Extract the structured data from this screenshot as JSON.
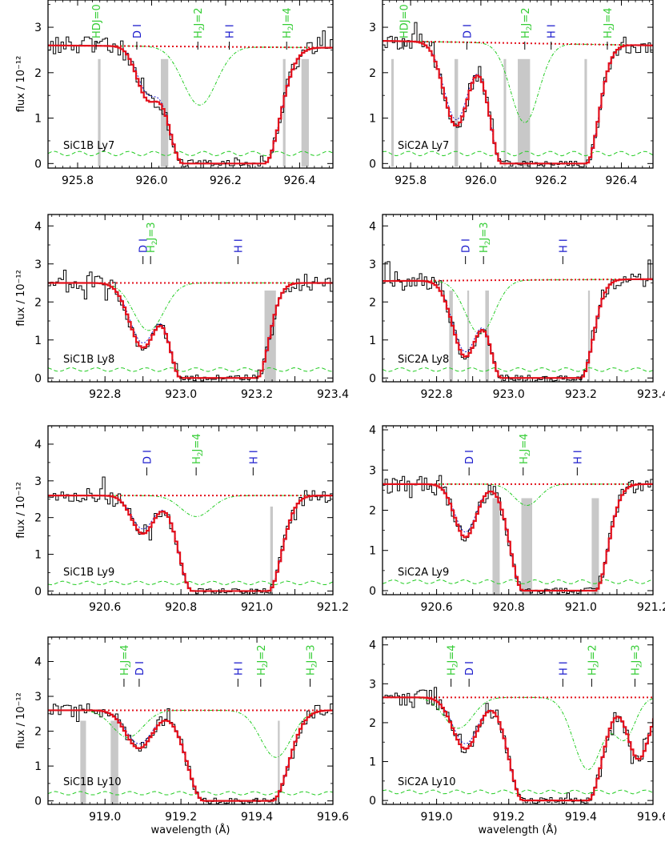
{
  "colors": {
    "axis": "#000000",
    "data": "#000000",
    "model": "#e3101b",
    "continuum": "#e3101b",
    "h2": "#22cc22",
    "nolambda": "#2222cc",
    "band": "#c8c8c8",
    "label_dh": "#1a1acc",
    "label_h2": "#33cc33"
  },
  "chart_data": [
    {
      "type": "line",
      "panel": "SiC1B Ly7",
      "xlim": [
        925.72,
        926.49
      ],
      "ylim": [
        -0.1,
        3.6
      ],
      "xticks": [
        "925.8",
        "926.0",
        "926.2",
        "926.4"
      ],
      "yticks": [
        "0",
        "1",
        "2",
        "3"
      ],
      "ylabel": "flux / 10⁻¹²",
      "xlabel": "",
      "continuum": 2.6,
      "cont_end": 2.55,
      "troughs": [
        {
          "c": 925.99,
          "w": 0.03,
          "d": 0.42
        },
        {
          "c": 926.195,
          "w": 0.12,
          "d": 1.0,
          "flat": 0.11
        }
      ],
      "h2": [
        {
          "c": 926.13,
          "w": 0.045,
          "d": 0.5
        }
      ],
      "bands": [
        [
          925.855,
          925.862
        ],
        [
          926.025,
          926.045
        ],
        [
          926.355,
          926.362
        ],
        [
          926.405,
          926.425
        ]
      ],
      "labels": [
        {
          "text": "HDJ=0",
          "x": 925.85,
          "color": "h2"
        },
        {
          "text": "D I",
          "x": 925.96,
          "color": "dh"
        },
        {
          "text": "H2J=2",
          "x": 926.125,
          "color": "h2"
        },
        {
          "text": "H I",
          "x": 926.21,
          "color": "dh"
        },
        {
          "text": "H2J=4",
          "x": 926.365,
          "color": "h2"
        }
      ]
    },
    {
      "type": "line",
      "panel": "SiC2A Ly7",
      "xlim": [
        925.72,
        926.49
      ],
      "ylim": [
        -0.1,
        3.6
      ],
      "xticks": [
        "925.8",
        "926.0",
        "926.2",
        "926.4"
      ],
      "yticks": [
        "0",
        "1",
        "2",
        "3"
      ],
      "ylabel": "",
      "xlabel": "",
      "continuum": 2.7,
      "cont_end": 2.6,
      "troughs": [
        {
          "c": 925.93,
          "w": 0.035,
          "d": 0.69
        },
        {
          "c": 926.18,
          "w": 0.1,
          "d": 1.0,
          "flat": 0.12
        }
      ],
      "h2": [
        {
          "c": 926.125,
          "w": 0.04,
          "d": 0.66
        }
      ],
      "bands": [
        [
          925.745,
          925.752
        ],
        [
          925.925,
          925.935
        ],
        [
          926.065,
          926.072
        ],
        [
          926.105,
          926.14
        ],
        [
          926.295,
          926.302
        ]
      ],
      "labels": [
        {
          "text": "HDJ=0",
          "x": 925.78,
          "color": "h2"
        },
        {
          "text": "D I",
          "x": 925.96,
          "color": "dh"
        },
        {
          "text": "H2J=2",
          "x": 926.125,
          "color": "h2"
        },
        {
          "text": "H I",
          "x": 926.2,
          "color": "dh"
        },
        {
          "text": "H2J=4",
          "x": 926.36,
          "color": "h2"
        }
      ]
    },
    {
      "type": "line",
      "panel": "SiC1B Ly8",
      "xlim": [
        922.65,
        923.4
      ],
      "ylim": [
        -0.1,
        4.3
      ],
      "xticks": [
        "922.8",
        "922.9",
        "923.0",
        "923.1",
        "923.2",
        "923.3",
        "923.4"
      ],
      "yticks": [
        "0",
        "1",
        "2",
        "3",
        "4"
      ],
      "ylabel": "flux / 10⁻¹²",
      "xlabel": "",
      "continuum": 2.5,
      "cont_end": 2.5,
      "troughs": [
        {
          "c": 922.9,
          "w": 0.035,
          "d": 0.68
        },
        {
          "c": 923.1,
          "w": 0.09,
          "d": 1.0,
          "flat": 0.1
        }
      ],
      "h2": [
        {
          "c": 922.915,
          "w": 0.04,
          "d": 0.5
        }
      ],
      "bands": [
        [
          923.22,
          923.25
        ]
      ],
      "labels": [
        {
          "text": "D I",
          "x": 922.9,
          "color": "dh"
        },
        {
          "text": "H2J=3",
          "x": 922.92,
          "color": "h2"
        },
        {
          "text": "H I",
          "x": 923.15,
          "color": "dh"
        }
      ]
    },
    {
      "type": "line",
      "panel": "SiC2A Ly8",
      "xlim": [
        922.65,
        923.4
      ],
      "ylim": [
        -0.1,
        4.3
      ],
      "xticks": [
        "922.8",
        "922.9",
        "923.0",
        "923.1",
        "923.2",
        "923.3",
        "923.4"
      ],
      "yticks": [
        "0",
        "1",
        "2",
        "3",
        "4"
      ],
      "ylabel": "",
      "xlabel": "",
      "continuum": 2.55,
      "cont_end": 2.6,
      "troughs": [
        {
          "c": 922.88,
          "w": 0.035,
          "d": 0.78
        },
        {
          "c": 923.09,
          "w": 0.095,
          "d": 1.0,
          "flat": 0.11
        }
      ],
      "h2": [
        {
          "c": 922.92,
          "w": 0.04,
          "d": 0.55
        }
      ],
      "bands": [
        [
          922.835,
          922.845
        ],
        [
          922.885,
          922.89
        ],
        [
          922.935,
          922.945
        ],
        [
          923.22,
          923.225
        ]
      ],
      "labels": [
        {
          "text": "D I",
          "x": 922.88,
          "color": "dh"
        },
        {
          "text": "H2J=3",
          "x": 922.93,
          "color": "h2"
        },
        {
          "text": "H I",
          "x": 923.15,
          "color": "dh"
        }
      ]
    },
    {
      "type": "line",
      "panel": "SiC1B Ly9",
      "xlim": [
        920.45,
        921.2
      ],
      "ylim": [
        -0.1,
        4.5
      ],
      "xticks": [
        "920.6",
        "920.7",
        "920.8",
        "920.9",
        "921.0",
        "921.1",
        "921.2"
      ],
      "yticks": [
        "0",
        "1",
        "2",
        "3",
        "4"
      ],
      "ylabel": "flux / 10⁻¹²",
      "xlabel": "",
      "continuum": 2.6,
      "cont_end": 2.6,
      "troughs": [
        {
          "c": 920.7,
          "w": 0.03,
          "d": 0.4
        },
        {
          "c": 920.93,
          "w": 0.1,
          "d": 1.0,
          "flat": 0.1
        }
      ],
      "h2": [
        {
          "c": 920.84,
          "w": 0.04,
          "d": 0.22
        }
      ],
      "bands": [
        [
          921.035,
          921.042
        ]
      ],
      "labels": [
        {
          "text": "D I",
          "x": 920.71,
          "color": "dh"
        },
        {
          "text": "H2J=4",
          "x": 920.84,
          "color": "h2"
        },
        {
          "text": "H I",
          "x": 920.99,
          "color": "dh"
        }
      ]
    },
    {
      "type": "line",
      "panel": "SiC2A Ly9",
      "xlim": [
        920.45,
        921.2
      ],
      "ylim": [
        -0.1,
        4.1
      ],
      "xticks": [
        "920.6",
        "920.7",
        "920.8",
        "920.9",
        "921.0",
        "921.1",
        "921.2"
      ],
      "yticks": [
        "0",
        "1",
        "2",
        "3",
        "4"
      ],
      "ylabel": "",
      "xlabel": "",
      "continuum": 2.65,
      "cont_end": 2.65,
      "troughs": [
        {
          "c": 920.68,
          "w": 0.03,
          "d": 0.5
        },
        {
          "c": 920.94,
          "w": 0.1,
          "d": 1.0,
          "flat": 0.1
        }
      ],
      "h2": [
        {
          "c": 920.85,
          "w": 0.035,
          "d": 0.2
        }
      ],
      "bands": [
        [
          920.755,
          920.775
        ],
        [
          920.835,
          920.865
        ],
        [
          921.03,
          921.05
        ]
      ],
      "labels": [
        {
          "text": "D I",
          "x": 920.69,
          "color": "dh"
        },
        {
          "text": "H2J=4",
          "x": 920.84,
          "color": "h2"
        },
        {
          "text": "H I",
          "x": 920.99,
          "color": "dh"
        }
      ]
    },
    {
      "type": "line",
      "panel": "SiC1B Ly10",
      "xlim": [
        918.85,
        919.6
      ],
      "ylim": [
        -0.1,
        4.7
      ],
      "xticks": [
        "919.0",
        "919.2",
        "919.4",
        "919.6"
      ],
      "yticks": [
        "0",
        "1",
        "2",
        "3",
        "4"
      ],
      "ylabel": "flux / 10⁻¹²",
      "xlabel": "wavelength (Å)",
      "continuum": 2.6,
      "cont_end": 2.6,
      "troughs": [
        {
          "c": 919.09,
          "w": 0.035,
          "d": 0.42
        },
        {
          "c": 919.35,
          "w": 0.12,
          "d": 1.0,
          "flat": 0.09
        }
      ],
      "h2": [
        {
          "c": 919.06,
          "w": 0.04,
          "d": 0.3
        },
        {
          "c": 919.45,
          "w": 0.04,
          "d": 0.52
        }
      ],
      "bands": [
        [
          918.935,
          918.95
        ],
        [
          919.015,
          919.035
        ],
        [
          919.455,
          919.46
        ]
      ],
      "labels": [
        {
          "text": "H2J=4",
          "x": 919.05,
          "color": "h2"
        },
        {
          "text": "D I",
          "x": 919.09,
          "color": "dh"
        },
        {
          "text": "H I",
          "x": 919.35,
          "color": "dh"
        },
        {
          "text": "H2J=2",
          "x": 919.41,
          "color": "h2"
        },
        {
          "text": "H2J=3",
          "x": 919.54,
          "color": "h2"
        }
      ]
    },
    {
      "type": "line",
      "panel": "SiC2A Ly10",
      "xlim": [
        918.85,
        919.6
      ],
      "ylim": [
        -0.1,
        4.2
      ],
      "xticks": [
        "919.0",
        "919.2",
        "919.4",
        "919.6"
      ],
      "yticks": [
        "0",
        "1",
        "2",
        "3",
        "4"
      ],
      "ylabel": "",
      "xlabel": "wavelength (Å)",
      "continuum": 2.65,
      "cont_end": 2.65,
      "troughs": [
        {
          "c": 919.08,
          "w": 0.035,
          "d": 0.5
        },
        {
          "c": 919.33,
          "w": 0.11,
          "d": 1.0,
          "flat": 0.09
        },
        {
          "c": 919.56,
          "w": 0.03,
          "d": 0.6
        }
      ],
      "h2": [
        {
          "c": 919.06,
          "w": 0.04,
          "d": 0.3
        },
        {
          "c": 919.42,
          "w": 0.04,
          "d": 0.7
        },
        {
          "c": 919.52,
          "w": 0.03,
          "d": 0.4
        }
      ],
      "bands": [],
      "labels": [
        {
          "text": "H2J=4",
          "x": 919.04,
          "color": "h2"
        },
        {
          "text": "D I",
          "x": 919.09,
          "color": "dh"
        },
        {
          "text": "H I",
          "x": 919.35,
          "color": "dh"
        },
        {
          "text": "H2J=2",
          "x": 919.43,
          "color": "h2"
        },
        {
          "text": "H2J=3",
          "x": 919.55,
          "color": "h2"
        }
      ]
    }
  ]
}
